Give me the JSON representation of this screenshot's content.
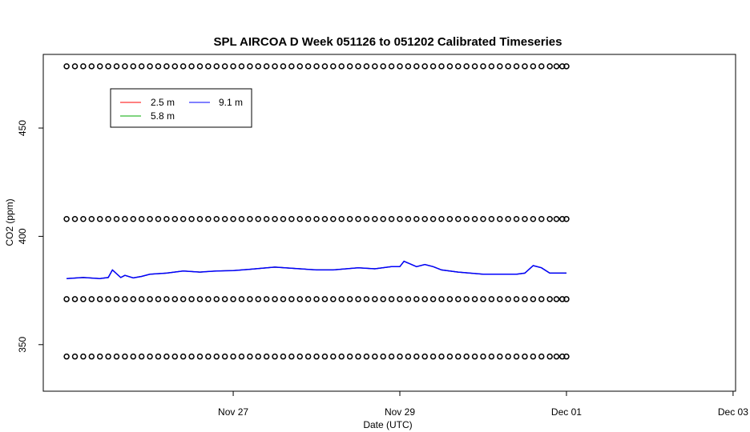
{
  "chart_data": {
    "type": "line",
    "title": "SPL AIRCOA D  Week 051126 to 051202  Calibrated Timeseries",
    "xlabel": "Date (UTC)",
    "ylabel": "CO2 (ppm)",
    "x_ticks": [
      {
        "day": 1,
        "label": "Nov 27"
      },
      {
        "day": 3,
        "label": "Nov 29"
      },
      {
        "day": 5,
        "label": "Dec 01"
      },
      {
        "day": 7,
        "label": "Dec 03"
      }
    ],
    "y_ticks": [
      350,
      400,
      450
    ],
    "xlim": [
      -1.28,
      7.03
    ],
    "ylim": [
      328.5,
      484
    ],
    "grid": false,
    "legend_position": "top-left",
    "series": [
      {
        "name": "2.5 m",
        "color": "#ff0000"
      },
      {
        "name": "5.8 m",
        "color": "#00aa00"
      },
      {
        "name": "9.1 m",
        "color": "#0000ff"
      }
    ],
    "co2_line": {
      "x": [
        -1.0,
        -0.8,
        -0.6,
        -0.5,
        -0.45,
        -0.35,
        -0.3,
        -0.2,
        -0.1,
        0.0,
        0.2,
        0.4,
        0.6,
        0.8,
        1.0,
        1.2,
        1.5,
        1.8,
        2.0,
        2.2,
        2.5,
        2.7,
        2.9,
        3.0,
        3.05,
        3.2,
        3.3,
        3.4,
        3.5,
        3.7,
        4.0,
        4.2,
        4.4,
        4.5,
        4.6,
        4.7,
        4.8,
        5.0
      ],
      "y": [
        380.5,
        381,
        380.5,
        381,
        384.5,
        381,
        382,
        380.8,
        381.5,
        382.5,
        383,
        384,
        383.5,
        384,
        384.2,
        384.8,
        385.8,
        385,
        384.5,
        384.5,
        385.5,
        385,
        386,
        386,
        388.5,
        386,
        387,
        386,
        384.5,
        383.5,
        382.5,
        382.5,
        382.5,
        383,
        386.5,
        385.5,
        383,
        383
      ]
    },
    "calibration_levels": [
      478.5,
      408,
      371,
      344.5
    ],
    "calibration_times": [
      -1.0,
      -0.9,
      -0.8,
      -0.7,
      -0.6,
      -0.5,
      -0.4,
      -0.3,
      -0.2,
      -0.1,
      0.0,
      0.1,
      0.2,
      0.3,
      0.4,
      0.5,
      0.6,
      0.7,
      0.8,
      0.9,
      1.0,
      1.1,
      1.2,
      1.3,
      1.4,
      1.5,
      1.6,
      1.7,
      1.8,
      1.9,
      2.0,
      2.1,
      2.2,
      2.3,
      2.4,
      2.5,
      2.6,
      2.7,
      2.8,
      2.9,
      3.0,
      3.1,
      3.2,
      3.3,
      3.4,
      3.5,
      3.6,
      3.7,
      3.8,
      3.9,
      4.0,
      4.1,
      4.2,
      4.3,
      4.4,
      4.5,
      4.6,
      4.7,
      4.8,
      4.88,
      4.95,
      5.0
    ]
  }
}
